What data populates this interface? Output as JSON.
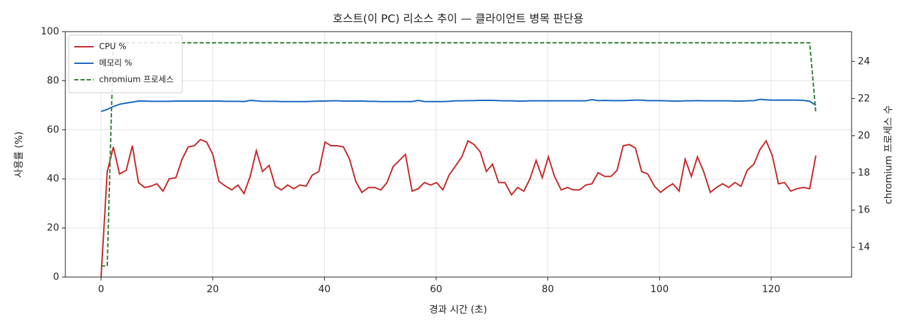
{
  "chart_data": {
    "type": "line",
    "title": "호스트(이 PC) 리소스 추이 — 클라이언트 병목 판단용",
    "x_label": "경과 시간 (초)",
    "y_label": "사용률 (%)",
    "y2_label": "chromium 프로세스 수",
    "xlim": [
      -6.4,
      134.4
    ],
    "xticks": [
      0,
      20,
      40,
      60,
      80,
      100,
      120
    ],
    "ylim": [
      0,
      100
    ],
    "yticks": [
      0,
      20,
      40,
      60,
      80,
      100
    ],
    "y2lim": [
      12.4,
      25.6
    ],
    "y2ticks": [
      14,
      16,
      18,
      20,
      22,
      24
    ],
    "grid": true,
    "legend": "upper left",
    "x": [
      0,
      1.1,
      2.2,
      3.3,
      4.5,
      5.6,
      6.7,
      7.8,
      8.9,
      10.0,
      11.1,
      12.2,
      13.4,
      14.5,
      15.6,
      16.7,
      17.8,
      18.9,
      20.0,
      21.1,
      22.3,
      23.4,
      24.5,
      25.6,
      26.7,
      27.8,
      28.9,
      30.1,
      31.2,
      32.3,
      33.4,
      34.5,
      35.6,
      36.7,
      37.8,
      39.0,
      40.1,
      41.2,
      42.3,
      43.4,
      44.5,
      45.6,
      46.7,
      47.9,
      49.0,
      50.1,
      51.2,
      52.3,
      53.4,
      54.5,
      55.7,
      56.8,
      57.9,
      59.0,
      60.1,
      61.2,
      62.3,
      63.4,
      64.6,
      65.7,
      66.8,
      67.9,
      69.0,
      70.1,
      71.2,
      72.3,
      73.5,
      74.6,
      75.7,
      76.8,
      77.9,
      79.0,
      80.1,
      81.2,
      82.4,
      83.5,
      84.6,
      85.7,
      86.8,
      87.9,
      89.0,
      90.2,
      91.3,
      92.4,
      93.5,
      94.6,
      95.7,
      96.8,
      97.9,
      99.1,
      100.2,
      101.3,
      102.4,
      103.5,
      104.6,
      105.7,
      106.8,
      107.9,
      109.1,
      110.2,
      111.3,
      112.4,
      113.5,
      114.6,
      115.7,
      116.9,
      118.0,
      119.1,
      120.2,
      121.3,
      122.4,
      123.5,
      124.6,
      125.8,
      126.9,
      128.0
    ],
    "series": [
      {
        "name": "CPU %",
        "color": "#c62828",
        "dash": false,
        "values": [
          0,
          43,
          53,
          42,
          43.5,
          53.5,
          38.5,
          36.5,
          37,
          38,
          35,
          40,
          40.5,
          48,
          53,
          53.5,
          56,
          55,
          50,
          39,
          37,
          35.5,
          37.5,
          34,
          41,
          51.5,
          43,
          45.5,
          37,
          35.5,
          37.5,
          36,
          37.5,
          37,
          41.5,
          43,
          55,
          53.5,
          53.5,
          53,
          48,
          39,
          34.5,
          36.5,
          36.5,
          35.5,
          38.5,
          45,
          47.5,
          50,
          35,
          36,
          38.5,
          37.5,
          38.5,
          35.5,
          41.5,
          45,
          49,
          55.5,
          54,
          51,
          43,
          46,
          38.5,
          38.5,
          33.5,
          36.5,
          35,
          40,
          47.5,
          40.5,
          49,
          41,
          35.5,
          36.5,
          35.5,
          35.5,
          37.5,
          38,
          42.5,
          41,
          41,
          43.5,
          53.5,
          54,
          52.5,
          43,
          42,
          37,
          34.5,
          36.5,
          38,
          35,
          48,
          41,
          49,
          43,
          34.5,
          36.5,
          38,
          36.5,
          38.5,
          37,
          43.5,
          46,
          52,
          55.5,
          49.5,
          38,
          38.5,
          35,
          36,
          36.5,
          36,
          49.5
        ]
      },
      {
        "name": "메모리 %",
        "color": "#1565c0",
        "dash": false,
        "values": [
          67.5,
          68.3,
          69.5,
          70.4,
          70.9,
          71.3,
          71.7,
          71.7,
          71.6,
          71.6,
          71.6,
          71.6,
          71.7,
          71.7,
          71.7,
          71.7,
          71.7,
          71.7,
          71.7,
          71.7,
          71.6,
          71.6,
          71.6,
          71.5,
          72.0,
          71.8,
          71.6,
          71.6,
          71.6,
          71.5,
          71.5,
          71.5,
          71.5,
          71.5,
          71.6,
          71.7,
          71.7,
          71.8,
          71.8,
          71.7,
          71.7,
          71.7,
          71.7,
          71.6,
          71.6,
          71.5,
          71.5,
          71.5,
          71.5,
          71.5,
          71.5,
          72.0,
          71.5,
          71.5,
          71.5,
          71.5,
          71.6,
          71.8,
          71.8,
          71.9,
          71.9,
          72.0,
          72.0,
          72.0,
          71.9,
          71.8,
          71.8,
          71.7,
          71.7,
          71.8,
          71.8,
          71.8,
          71.8,
          71.8,
          71.8,
          71.8,
          71.8,
          71.8,
          71.8,
          72.3,
          71.9,
          72.0,
          71.9,
          71.9,
          71.9,
          72.0,
          72.1,
          72.1,
          71.9,
          71.9,
          71.9,
          71.8,
          71.7,
          71.7,
          71.8,
          71.8,
          71.9,
          71.8,
          71.8,
          71.8,
          71.8,
          71.8,
          71.7,
          71.7,
          71.8,
          71.9,
          72.4,
          72.2,
          72.1,
          72.1,
          72.1,
          72.1,
          72.1,
          72.0,
          71.6,
          70.0
        ]
      },
      {
        "name": "chromium 프로세스",
        "color": "#2e7d32",
        "dash": true,
        "axis": "y2",
        "values": [
          13,
          13,
          25,
          25,
          25,
          25,
          25,
          25,
          25,
          25,
          25,
          25,
          25,
          25,
          25,
          25,
          25,
          25,
          25,
          25,
          25,
          25,
          25,
          25,
          25,
          25,
          25,
          25,
          25,
          25,
          25,
          25,
          25,
          25,
          25,
          25,
          25,
          25,
          25,
          25,
          25,
          25,
          25,
          25,
          25,
          25,
          25,
          25,
          25,
          25,
          25,
          25,
          25,
          25,
          25,
          25,
          25,
          25,
          25,
          25,
          25,
          25,
          25,
          25,
          25,
          25,
          25,
          25,
          25,
          25,
          25,
          25,
          25,
          25,
          25,
          25,
          25,
          25,
          25,
          25,
          25,
          25,
          25,
          25,
          25,
          25,
          25,
          25,
          25,
          25,
          25,
          25,
          25,
          25,
          25,
          25,
          25,
          25,
          25,
          25,
          25,
          25,
          25,
          25,
          25,
          25,
          25,
          25,
          25,
          25,
          25,
          25,
          25,
          25,
          25,
          21.2
        ]
      }
    ]
  }
}
